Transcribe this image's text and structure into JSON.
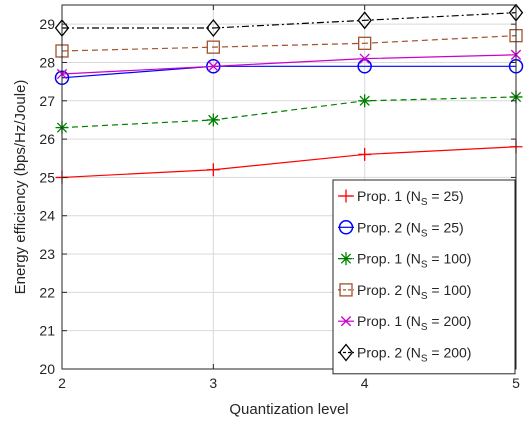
{
  "chart_data": {
    "type": "line",
    "title": "",
    "xlabel": "Quantization level",
    "ylabel": "Energy efficiency (bps/Hz/Joule)",
    "x": [
      2,
      3,
      4,
      5
    ],
    "xlim": [
      2,
      5
    ],
    "ylim": [
      20,
      29.5
    ],
    "xticks": [
      2,
      3,
      4,
      5
    ],
    "yticks": [
      20,
      21,
      22,
      23,
      24,
      25,
      26,
      27,
      28,
      29
    ],
    "grid": true,
    "legend_location": "bottom-right",
    "series": [
      {
        "name": "Prop. 1",
        "ns": "25",
        "values": [
          25.0,
          25.2,
          25.6,
          25.8
        ],
        "color": "#ff0000",
        "marker": "plus",
        "dash": "solid"
      },
      {
        "name": "Prop. 2",
        "ns": "25",
        "values": [
          27.6,
          27.9,
          27.9,
          27.9
        ],
        "color": "#0000ff",
        "marker": "circle",
        "dash": "solid"
      },
      {
        "name": "Prop. 1",
        "ns": "100",
        "values": [
          26.3,
          26.5,
          27.0,
          27.1
        ],
        "color": "#008000",
        "marker": "asterisk",
        "dash": "dashed"
      },
      {
        "name": "Prop. 2",
        "ns": "100",
        "values": [
          28.3,
          28.4,
          28.5,
          28.7
        ],
        "color": "#a0522d",
        "marker": "square",
        "dash": "dashed"
      },
      {
        "name": "Prop. 1",
        "ns": "200",
        "values": [
          27.7,
          27.9,
          28.1,
          28.2
        ],
        "color": "#cc00cc",
        "marker": "x",
        "dash": "solid"
      },
      {
        "name": "Prop. 2",
        "ns": "200",
        "values": [
          28.9,
          28.9,
          29.1,
          29.3
        ],
        "color": "#000000",
        "marker": "diamond",
        "dash": "dashdot"
      }
    ]
  }
}
